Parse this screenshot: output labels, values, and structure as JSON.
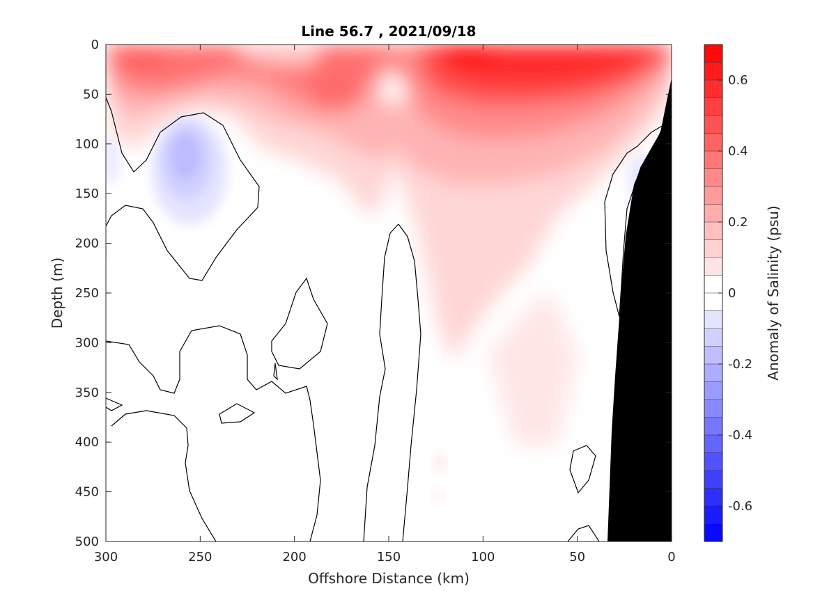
{
  "chart_data": {
    "type": "heatmap",
    "title": "Line 56.7 , 2021/09/18",
    "xlabel": "Offshore Distance (km)",
    "ylabel": "Depth (m)",
    "xlim": [
      300,
      0
    ],
    "ylim": [
      0,
      500
    ],
    "x_reversed": true,
    "y_reversed": true,
    "xticks": [
      300,
      250,
      200,
      150,
      100,
      50,
      0
    ],
    "yticks": [
      0,
      50,
      100,
      150,
      200,
      250,
      300,
      350,
      400,
      450,
      500
    ],
    "colorbar": {
      "label": "Anomaly of Salinity (psu)",
      "clim": [
        -0.7,
        0.7
      ],
      "ticks": [
        0.6,
        0.4,
        0.2,
        0,
        -0.2,
        -0.4,
        -0.6
      ],
      "tick_labels": [
        "0.6",
        "0.4",
        "0.2",
        "0",
        "-0.2",
        "-0.4",
        "-0.6"
      ],
      "levels": 28,
      "neg_color": "#0000ff",
      "pos_color": "#ff0000",
      "mid_color": "#ffffff"
    },
    "features": [
      {
        "kind": "positive_anomaly",
        "center_km": 100,
        "center_depth_m": 20,
        "value": 0.65
      },
      {
        "kind": "positive_anomaly",
        "center_km": 285,
        "center_depth_m": 20,
        "value": 0.5
      },
      {
        "kind": "positive_anomaly",
        "center_km": 180,
        "center_depth_m": 45,
        "value": 0.45
      },
      {
        "kind": "positive_anomaly",
        "center_km": 60,
        "center_depth_m": 30,
        "value": 0.6
      },
      {
        "kind": "negative_anomaly",
        "center_km": 255,
        "center_depth_m": 115,
        "value": -0.2
      },
      {
        "kind": "zero_contour_region",
        "center_km": 150,
        "center_depth_m": 340
      },
      {
        "kind": "bathymetry_mask",
        "color": "#000000"
      }
    ]
  }
}
